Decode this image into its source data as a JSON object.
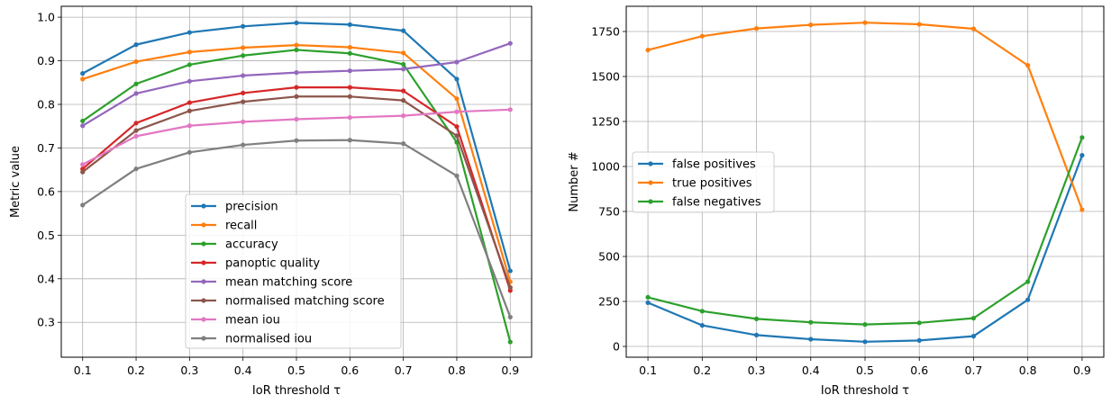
{
  "chart_data": [
    {
      "type": "line",
      "title": "",
      "xlabel": "IoR threshold τ",
      "ylabel": "Metric value",
      "x": [
        0.1,
        0.2,
        0.3,
        0.4,
        0.5,
        0.6,
        0.7,
        0.8,
        0.9
      ],
      "x_ticks": [
        "0.1",
        "0.2",
        "0.3",
        "0.4",
        "0.5",
        "0.6",
        "0.7",
        "0.8",
        "0.9"
      ],
      "xlim": [
        0.06,
        0.94
      ],
      "ylim": [
        0.22,
        1.025
      ],
      "y_ticks": [
        "0.3",
        "0.4",
        "0.5",
        "0.6",
        "0.7",
        "0.8",
        "0.9",
        "1.0"
      ],
      "grid": true,
      "legend": "lower-center",
      "series": [
        {
          "name": "precision",
          "color": "#1f77b4",
          "values": [
            0.871,
            0.937,
            0.965,
            0.979,
            0.987,
            0.983,
            0.969,
            0.858,
            0.418
          ]
        },
        {
          "name": "recall",
          "color": "#ff7f0e",
          "values": [
            0.858,
            0.898,
            0.92,
            0.93,
            0.936,
            0.931,
            0.918,
            0.813,
            0.393
          ]
        },
        {
          "name": "accuracy",
          "color": "#2ca02c",
          "values": [
            0.762,
            0.847,
            0.891,
            0.912,
            0.925,
            0.917,
            0.892,
            0.713,
            0.255
          ]
        },
        {
          "name": "panoptic quality",
          "color": "#d62728",
          "values": [
            0.652,
            0.757,
            0.804,
            0.826,
            0.839,
            0.839,
            0.831,
            0.749,
            0.373
          ]
        },
        {
          "name": "mean matching score",
          "color": "#9467bd",
          "values": [
            0.751,
            0.825,
            0.853,
            0.866,
            0.873,
            0.877,
            0.881,
            0.897,
            0.94
          ]
        },
        {
          "name": "normalised matching score",
          "color": "#8c564b",
          "values": [
            0.645,
            0.74,
            0.785,
            0.806,
            0.818,
            0.818,
            0.809,
            0.728,
            0.38
          ]
        },
        {
          "name": "mean iou",
          "color": "#e377c2",
          "values": [
            0.662,
            0.727,
            0.751,
            0.76,
            0.766,
            0.77,
            0.774,
            0.783,
            0.788
          ]
        },
        {
          "name": "normalised iou",
          "color": "#7f7f7f",
          "values": [
            0.569,
            0.652,
            0.69,
            0.707,
            0.717,
            0.718,
            0.71,
            0.636,
            0.312
          ]
        }
      ]
    },
    {
      "type": "line",
      "title": "",
      "xlabel": "IoR threshold τ",
      "ylabel": "Number #",
      "x": [
        0.1,
        0.2,
        0.3,
        0.4,
        0.5,
        0.6,
        0.7,
        0.8,
        0.9
      ],
      "x_ticks": [
        "0.1",
        "0.2",
        "0.3",
        "0.4",
        "0.5",
        "0.6",
        "0.7",
        "0.8",
        "0.9"
      ],
      "xlim": [
        0.06,
        0.94
      ],
      "ylim": [
        -60,
        1890
      ],
      "y_ticks": [
        "0",
        "250",
        "500",
        "750",
        "1000",
        "1250",
        "1500",
        "1750"
      ],
      "grid": true,
      "legend": "center-left",
      "series": [
        {
          "name": "false positives",
          "color": "#1f77b4",
          "values": [
            243,
            117,
            63,
            40,
            26,
            33,
            57,
            259,
            1062
          ]
        },
        {
          "name": "true positives",
          "color": "#ff7f0e",
          "values": [
            1647,
            1724,
            1767,
            1787,
            1799,
            1790,
            1765,
            1562,
            760
          ]
        },
        {
          "name": "false negatives",
          "color": "#2ca02c",
          "values": [
            273,
            196,
            153,
            134,
            122,
            131,
            157,
            360,
            1161
          ]
        }
      ]
    }
  ]
}
